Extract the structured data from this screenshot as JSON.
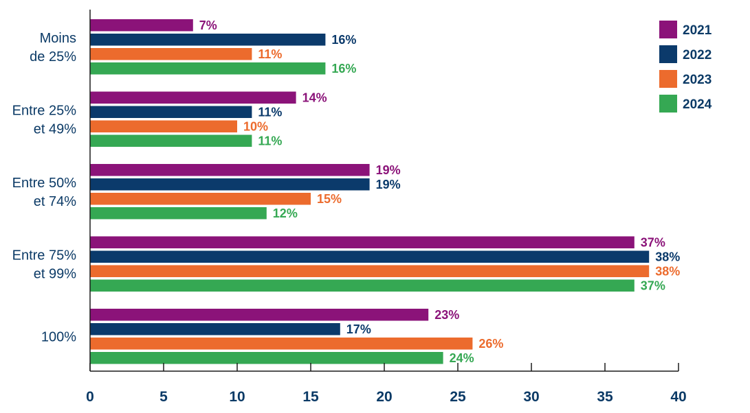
{
  "chart_data": {
    "type": "bar",
    "orientation": "horizontal",
    "categories": [
      [
        "Moins",
        "de 25%"
      ],
      [
        "Entre 25%",
        "et 49%"
      ],
      [
        "Entre 50%",
        "et 74%"
      ],
      [
        "Entre 75%",
        "et 99%"
      ],
      [
        "100%"
      ]
    ],
    "series": [
      {
        "name": "2021",
        "color": "#8b1379",
        "values": [
          7,
          14,
          19,
          37,
          23
        ],
        "labels": [
          "7%",
          "14%",
          "19%",
          "37%",
          "23%"
        ]
      },
      {
        "name": "2022",
        "color": "#0b3a6b",
        "values": [
          16,
          11,
          19,
          38,
          17
        ],
        "labels": [
          "16%",
          "11%",
          "19%",
          "38%",
          "17%"
        ]
      },
      {
        "name": "2023",
        "color": "#ec6b2d",
        "values": [
          11,
          10,
          15,
          38,
          26
        ],
        "labels": [
          "11%",
          "10%",
          "15%",
          "38%",
          "26%"
        ]
      },
      {
        "name": "2024",
        "color": "#35a853",
        "values": [
          16,
          11,
          12,
          37,
          24
        ],
        "labels": [
          "16%",
          "11%",
          "12%",
          "37%",
          "24%"
        ]
      }
    ],
    "xlim": [
      0,
      40
    ],
    "xticks": [
      0,
      5,
      10,
      15,
      20,
      25,
      30,
      35,
      40
    ],
    "title": "",
    "xlabel": "",
    "ylabel": "",
    "legend_position": "top-right",
    "grid": false
  }
}
